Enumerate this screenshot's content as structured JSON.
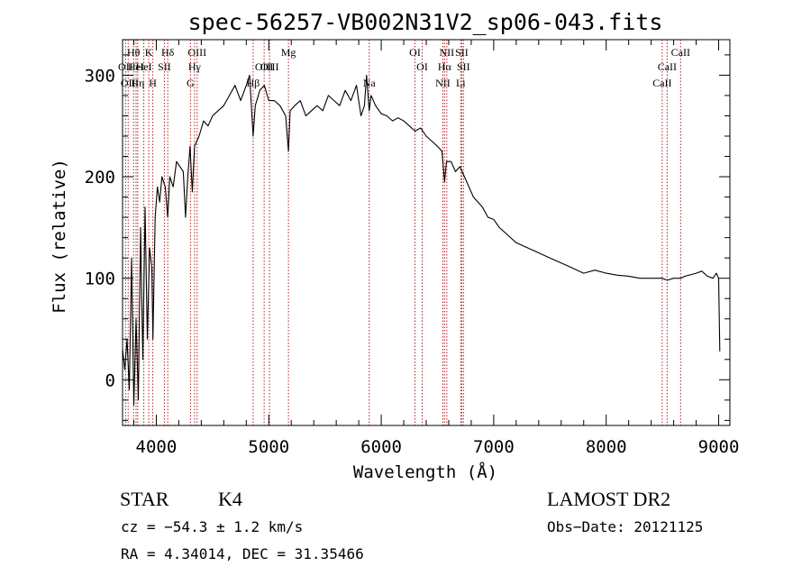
{
  "chart_data": {
    "type": "line",
    "title": "spec-56257-VB002N31V2_sp06-043.fits",
    "xlabel": "Wavelength (Å)",
    "ylabel": "Flux (relative)",
    "xlim": [
      3700,
      9100
    ],
    "ylim": [
      -45,
      335
    ],
    "x_ticks": [
      {
        "value": 4000,
        "label": "4000"
      },
      {
        "value": 5000,
        "label": "5000"
      },
      {
        "value": 6000,
        "label": "6000"
      },
      {
        "value": 7000,
        "label": "7000"
      },
      {
        "value": 8000,
        "label": "8000"
      },
      {
        "value": 9000,
        "label": "9000"
      }
    ],
    "y_ticks": [
      {
        "value": 0,
        "label": "0"
      },
      {
        "value": 100,
        "label": "100"
      },
      {
        "value": 200,
        "label": "200"
      },
      {
        "value": 300,
        "label": "300"
      }
    ],
    "grid": false,
    "line_color": "#000000",
    "marker_line_color": "#b22222",
    "series": [
      {
        "x": [
          3700,
          3720,
          3740,
          3760,
          3780,
          3800,
          3820,
          3840,
          3860,
          3880,
          3900,
          3920,
          3940,
          3960,
          3970,
          3990,
          4010,
          4030,
          4050,
          4080,
          4101,
          4120,
          4150,
          4180,
          4210,
          4240,
          4260,
          4280,
          4300,
          4320,
          4340,
          4360,
          4380,
          4420,
          4460,
          4500,
          4550,
          4600,
          4650,
          4700,
          4750,
          4800,
          4830,
          4861,
          4880,
          4920,
          4960,
          5000,
          5050,
          5100,
          5150,
          5175,
          5190,
          5230,
          5280,
          5330,
          5380,
          5430,
          5480,
          5530,
          5580,
          5630,
          5680,
          5730,
          5780,
          5820,
          5850,
          5870,
          5893,
          5910,
          5950,
          6000,
          6050,
          6100,
          6150,
          6200,
          6250,
          6300,
          6350,
          6400,
          6450,
          6500,
          6540,
          6563,
          6580,
          6620,
          6660,
          6700,
          6740,
          6780,
          6820,
          6860,
          6900,
          6950,
          7000,
          7050,
          7100,
          7150,
          7200,
          7300,
          7400,
          7500,
          7600,
          7700,
          7800,
          7900,
          8000,
          8100,
          8200,
          8300,
          8400,
          8500,
          8542,
          8600,
          8662,
          8700,
          8800,
          8850,
          8900,
          8950,
          8980,
          9000,
          9010
        ],
        "y": [
          30,
          10,
          40,
          -10,
          120,
          -25,
          60,
          -20,
          150,
          20,
          170,
          40,
          130,
          110,
          40,
          160,
          190,
          175,
          200,
          190,
          160,
          200,
          190,
          215,
          210,
          205,
          160,
          200,
          230,
          185,
          230,
          235,
          240,
          255,
          250,
          260,
          265,
          270,
          280,
          290,
          275,
          290,
          300,
          240,
          270,
          285,
          290,
          275,
          275,
          270,
          260,
          225,
          265,
          270,
          275,
          260,
          265,
          270,
          265,
          280,
          275,
          270,
          285,
          275,
          290,
          260,
          270,
          300,
          265,
          280,
          270,
          262,
          260,
          255,
          258,
          255,
          250,
          245,
          248,
          240,
          235,
          230,
          225,
          195,
          215,
          215,
          205,
          210,
          200,
          190,
          180,
          175,
          170,
          160,
          158,
          150,
          145,
          140,
          135,
          130,
          125,
          120,
          115,
          110,
          105,
          108,
          105,
          103,
          102,
          100,
          100,
          100,
          98,
          100,
          100,
          102,
          105,
          107,
          102,
          100,
          105,
          100,
          28
        ]
      }
    ],
    "line_markers": [
      {
        "x": 3727,
        "label": "OII",
        "row": 2
      },
      {
        "x": 3750,
        "label": "OII",
        "row": 3
      },
      {
        "x": 3798,
        "label": "Hθ",
        "row": 1
      },
      {
        "x": 3820,
        "label": "HeI",
        "row": 2
      },
      {
        "x": 3835,
        "label": "Hη",
        "row": 3
      },
      {
        "x": 3889,
        "label": "HeI",
        "row": 2
      },
      {
        "x": 3933,
        "label": "K",
        "row": 1
      },
      {
        "x": 3969,
        "label": "H",
        "row": 3
      },
      {
        "x": 4072,
        "label": "SII",
        "row": 2
      },
      {
        "x": 4102,
        "label": "Hδ",
        "row": 1
      },
      {
        "x": 4304,
        "label": "G",
        "row": 3
      },
      {
        "x": 4340,
        "label": "Hγ",
        "row": 2
      },
      {
        "x": 4363,
        "label": "OIII",
        "row": 1
      },
      {
        "x": 4861,
        "label": "Hβ",
        "row": 3
      },
      {
        "x": 4959,
        "label": "OIII",
        "row": 2
      },
      {
        "x": 5007,
        "label": "OIII",
        "row": 2
      },
      {
        "x": 5175,
        "label": "Mg",
        "row": 1
      },
      {
        "x": 5893,
        "label": "Na",
        "row": 3
      },
      {
        "x": 6300,
        "label": "OI",
        "row": 1
      },
      {
        "x": 6364,
        "label": "OI",
        "row": 2
      },
      {
        "x": 6548,
        "label": "NII",
        "row": 3
      },
      {
        "x": 6563,
        "label": "Hα",
        "row": 2
      },
      {
        "x": 6583,
        "label": "NII",
        "row": 1
      },
      {
        "x": 6707,
        "label": "Li",
        "row": 3
      },
      {
        "x": 6716,
        "label": "SII",
        "row": 1
      },
      {
        "x": 6731,
        "label": "SII",
        "row": 2
      },
      {
        "x": 8498,
        "label": "CaII",
        "row": 3
      },
      {
        "x": 8542,
        "label": "CaII",
        "row": 2
      },
      {
        "x": 8662,
        "label": "CaII",
        "row": 1
      }
    ]
  },
  "info": {
    "class": "STAR",
    "subclass": "K4",
    "survey": "LAMOST DR2",
    "cz": "cz = −54.3 ± 1.2 km/s",
    "obs_date": "Obs−Date: 20121125",
    "radec": "RA =   4.34014, DEC =  31.35466"
  }
}
